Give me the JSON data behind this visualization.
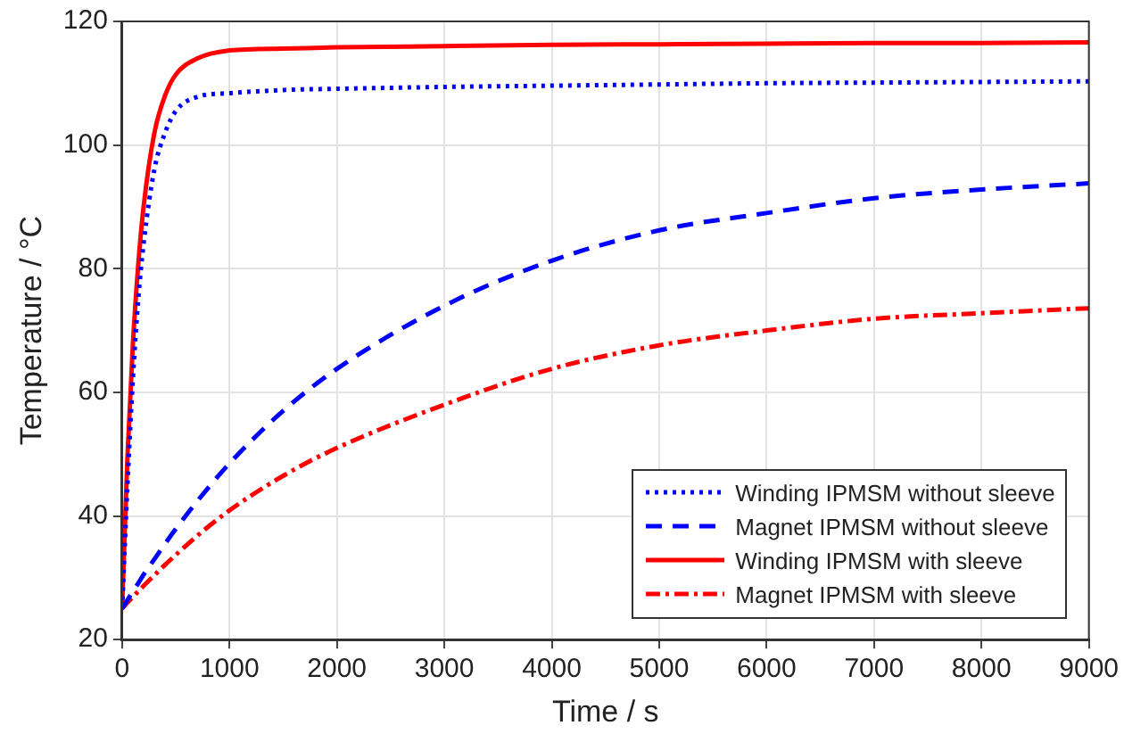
{
  "chart_data": {
    "type": "line",
    "xlabel": "Time / s",
    "ylabel": "Temperature / °C",
    "xlim": [
      0,
      9000
    ],
    "ylim": [
      20,
      120
    ],
    "xticks": [
      0,
      1000,
      2000,
      3000,
      4000,
      5000,
      6000,
      7000,
      8000,
      9000
    ],
    "yticks": [
      20,
      40,
      60,
      80,
      100,
      120
    ],
    "grid": true,
    "legend": "bottom right",
    "marker": "none",
    "x": [
      0,
      50,
      100,
      150,
      200,
      300,
      400,
      500,
      700,
      1000,
      1500,
      2000,
      3000,
      4000,
      5000,
      6000,
      7000,
      8000,
      9000
    ],
    "series": [
      {
        "name": "Winding IPMSM without sleeve",
        "color": "#0000ff",
        "line_style": "dotted",
        "values": [
          25,
          45,
          62,
          75,
          84,
          96,
          102,
          105.5,
          107.8,
          108.4,
          108.9,
          109.1,
          109.4,
          109.6,
          109.8,
          110,
          110.1,
          110.2,
          110.3
        ]
      },
      {
        "name": "Magnet IPMSM without sleeve",
        "color": "#0000ff",
        "line_style": "dashed",
        "values": [
          25,
          26.4,
          27.8,
          29.1,
          30.5,
          33,
          35.5,
          37.9,
          42.4,
          48.5,
          57,
          63.8,
          74,
          81.3,
          86.2,
          89,
          91.4,
          92.8,
          93.8
        ]
      },
      {
        "name": "Winding IPMSM with sleeve",
        "color": "#ff0000",
        "line_style": "solid",
        "values": [
          25,
          49.6,
          67.6,
          80.5,
          90,
          101.9,
          108,
          111.4,
          114,
          115.3,
          115.6,
          115.8,
          116,
          116.2,
          116.3,
          116.4,
          116.5,
          116.5,
          116.6
        ]
      },
      {
        "name": "Magnet IPMSM with sleeve",
        "color": "#ff0000",
        "line_style": "dashdot",
        "values": [
          25,
          26,
          26.9,
          27.8,
          28.7,
          30.4,
          32.1,
          33.7,
          36.8,
          40.9,
          46.5,
          51,
          58,
          63.8,
          67.6,
          70,
          71.9,
          72.8,
          73.6
        ]
      }
    ]
  }
}
